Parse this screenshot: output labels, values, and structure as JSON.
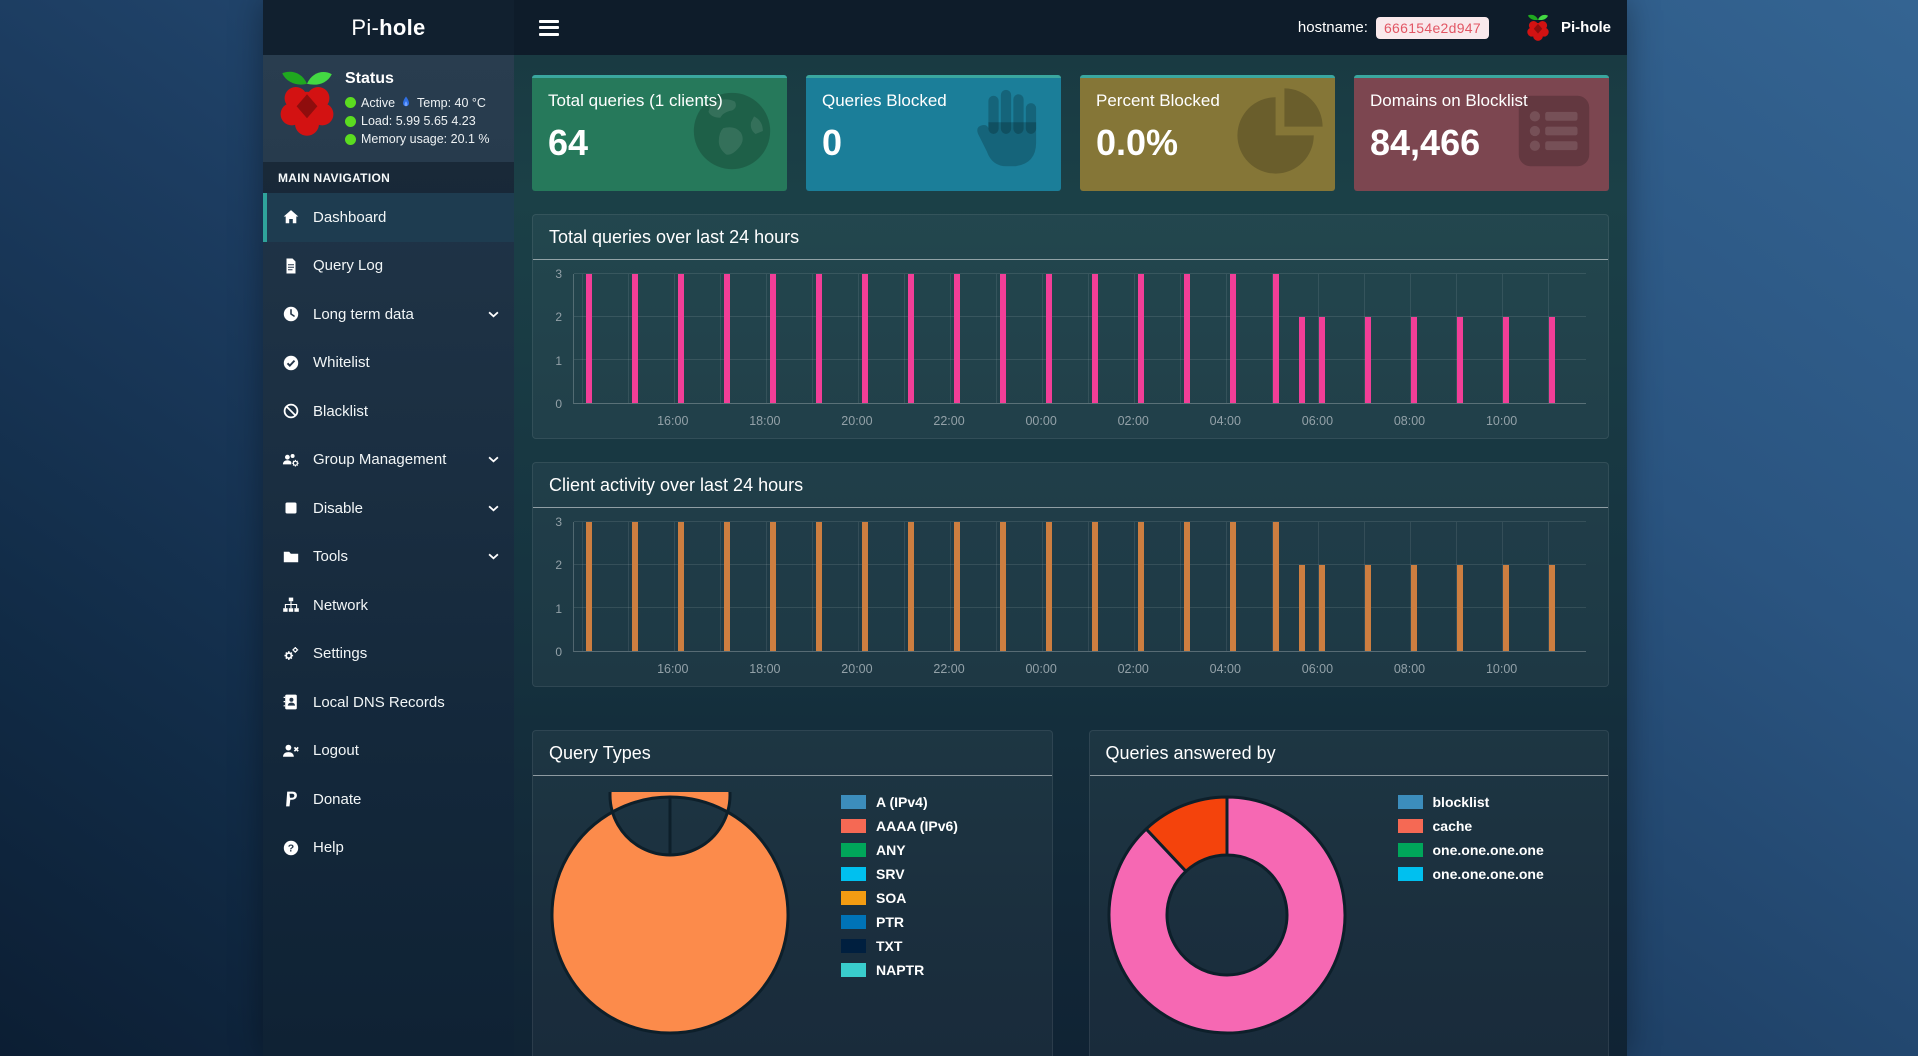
{
  "header": {
    "brand_prefix": "Pi-",
    "brand_suffix": "hole",
    "hostname_label": "hostname:",
    "hostname_value": "666154e2d947",
    "brand_right": "Pi-hole",
    "badge_bg": "#f9e9ec",
    "badge_text_color": "#e25664"
  },
  "sidebar": {
    "status": {
      "title": "Status",
      "active_label": "Active",
      "temp_label": "Temp: 40 °C",
      "load_label": "Load:  5.99  5.65  4.23",
      "memory_label": "Memory usage:  20.1 %",
      "dot_color": "#5bdc20"
    },
    "nav_header": "MAIN NAVIGATION",
    "active_accent": "#2fa39b",
    "items": [
      {
        "label": "Dashboard",
        "icon": "home-icon",
        "active": true
      },
      {
        "label": "Query Log",
        "icon": "file-icon"
      },
      {
        "label": "Long term data",
        "icon": "clock-icon",
        "expandable": true
      },
      {
        "label": "Whitelist",
        "icon": "check-circle-icon"
      },
      {
        "label": "Blacklist",
        "icon": "ban-icon"
      },
      {
        "label": "Group Management",
        "icon": "users-gear-icon",
        "expandable": true
      },
      {
        "label": "Disable",
        "icon": "stop-icon",
        "expandable": true
      },
      {
        "label": "Tools",
        "icon": "folder-icon",
        "expandable": true
      },
      {
        "label": "Network",
        "icon": "sitemap-icon"
      },
      {
        "label": "Settings",
        "icon": "gears-icon"
      },
      {
        "label": "Local DNS Records",
        "icon": "address-book-icon"
      },
      {
        "label": "Logout",
        "icon": "logout-icon"
      },
      {
        "label": "Donate",
        "icon": "paypal-icon"
      },
      {
        "label": "Help",
        "icon": "question-icon"
      }
    ]
  },
  "cards": [
    {
      "title": "Total queries (1 clients)",
      "value": "64",
      "bg": "#26795b",
      "icon": "globe-icon"
    },
    {
      "title": "Queries Blocked",
      "value": "0",
      "bg": "#1b7e99",
      "icon": "hand-icon"
    },
    {
      "title": "Percent Blocked",
      "value": "0.0%",
      "bg": "#857637",
      "icon": "pie-chart-icon"
    },
    {
      "title": "Domains on Blocklist",
      "value": "84,466",
      "bg": "#7c4650",
      "icon": "list-icon"
    }
  ],
  "chart_data": [
    {
      "type": "bar",
      "title": "Total queries over last 24 hours",
      "bar_color": "#f23e97",
      "x_start": "13:50",
      "x_end": "11:50",
      "x": [
        "14:10",
        "15:10",
        "16:10",
        "17:10",
        "18:10",
        "19:10",
        "20:10",
        "21:10",
        "22:10",
        "23:10",
        "00:10",
        "01:10",
        "02:10",
        "03:10",
        "04:10",
        "05:05",
        "05:40",
        "06:05",
        "07:05",
        "08:05",
        "09:05",
        "10:05",
        "11:05"
      ],
      "values": [
        3,
        3,
        3,
        3,
        3,
        3,
        3,
        3,
        3,
        3,
        3,
        3,
        3,
        3,
        3,
        3,
        2,
        2,
        2,
        2,
        2,
        2,
        2
      ],
      "xticks": [
        "16:00",
        "18:00",
        "20:00",
        "22:00",
        "00:00",
        "02:00",
        "04:00",
        "06:00",
        "08:00",
        "10:00"
      ],
      "yticks": [
        0,
        1,
        2,
        3
      ],
      "ylim": [
        0,
        3
      ],
      "grid": true
    },
    {
      "type": "bar",
      "title": "Client activity over last 24 hours",
      "bar_color": "#cd7e40",
      "x_start": "13:50",
      "x_end": "11:50",
      "x": [
        "14:10",
        "15:10",
        "16:10",
        "17:10",
        "18:10",
        "19:10",
        "20:10",
        "21:10",
        "22:10",
        "23:10",
        "00:10",
        "01:10",
        "02:10",
        "03:10",
        "04:10",
        "05:05",
        "05:40",
        "06:05",
        "07:05",
        "08:05",
        "09:05",
        "10:05",
        "11:05"
      ],
      "values": [
        3,
        3,
        3,
        3,
        3,
        3,
        3,
        3,
        3,
        3,
        3,
        3,
        3,
        3,
        3,
        3,
        2,
        2,
        2,
        2,
        2,
        2,
        2
      ],
      "xticks": [
        "16:00",
        "18:00",
        "20:00",
        "22:00",
        "00:00",
        "02:00",
        "04:00",
        "06:00",
        "08:00",
        "10:00"
      ],
      "yticks": [
        0,
        1,
        2,
        3
      ],
      "ylim": [
        0,
        3
      ],
      "grid": true
    },
    {
      "type": "pie",
      "title": "Query Types",
      "donut": true,
      "divider_at_top": true,
      "slices": [
        {
          "color": "#fc8b4b",
          "pct": 100
        }
      ],
      "legend_position": "right",
      "legend": [
        {
          "label": "A (IPv4)",
          "color": "#3c8dbc"
        },
        {
          "label": "AAAA (IPv6)",
          "color": "#f56954"
        },
        {
          "label": "ANY",
          "color": "#00a65a"
        },
        {
          "label": "SRV",
          "color": "#00c0ef"
        },
        {
          "label": "SOA",
          "color": "#f39c12"
        },
        {
          "label": "PTR",
          "color": "#0073b7"
        },
        {
          "label": "TXT",
          "color": "#001f3f"
        },
        {
          "label": "NAPTR",
          "color": "#39cccc"
        }
      ]
    },
    {
      "type": "pie",
      "title": "Queries answered by",
      "donut": true,
      "slices": [
        {
          "color": "#f668b3",
          "pct": 88
        },
        {
          "color": "#f4430c",
          "pct": 12
        }
      ],
      "legend_position": "right",
      "legend": [
        {
          "label": "blocklist",
          "color": "#3c8dbc"
        },
        {
          "label": "cache",
          "color": "#f56954"
        },
        {
          "label": "one.one.one.one",
          "color": "#00a65a"
        },
        {
          "label": "one.one.one.one",
          "color": "#00c0ef"
        }
      ]
    }
  ]
}
